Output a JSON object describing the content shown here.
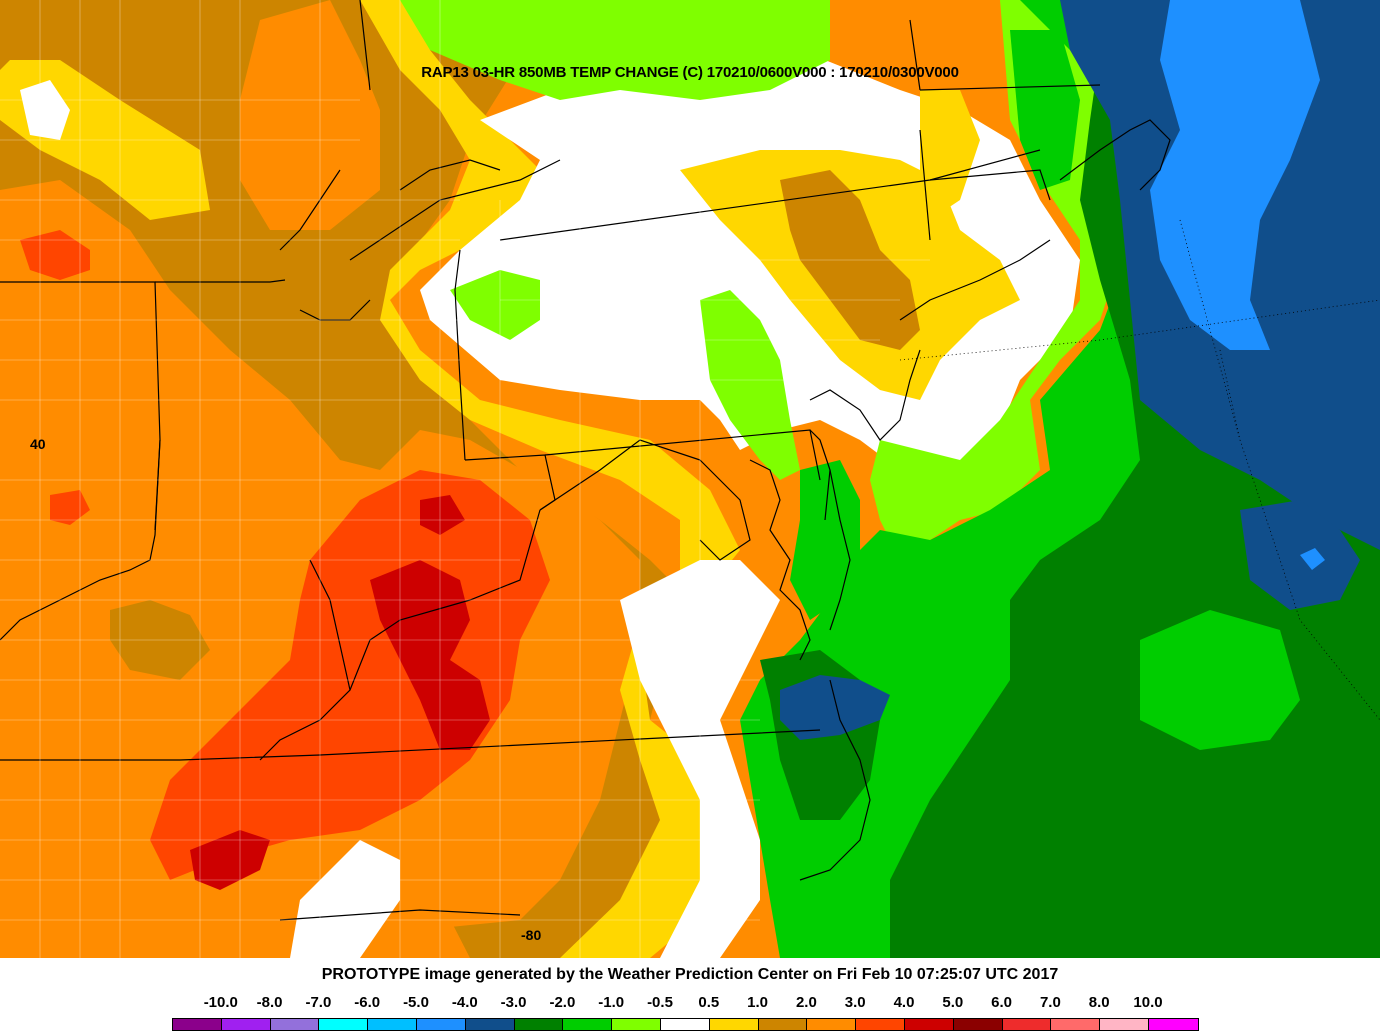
{
  "map": {
    "title": "RAP13 03-HR 850MB TEMP CHANGE (C) 170210/0600V000 : 170210/0300V000",
    "lat_label": "40",
    "lon_label": "-80"
  },
  "footer": {
    "credit": "PROTOTYPE image generated by the Weather Prediction Center on Fri Feb 10 07:25:07 UTC 2017"
  },
  "legend": {
    "labels": [
      "-10.0",
      "-8.0",
      "-7.0",
      "-6.0",
      "-5.0",
      "-4.0",
      "-3.0",
      "-2.0",
      "-1.0",
      "-0.5",
      "0.5",
      "1.0",
      "2.0",
      "3.0",
      "4.0",
      "5.0",
      "6.0",
      "7.0",
      "8.0",
      "10.0"
    ],
    "colors": [
      "#8b008b",
      "#a020f0",
      "#9370db",
      "#00ffff",
      "#00bfff",
      "#1e90ff",
      "#104e8b",
      "#008000",
      "#00cd00",
      "#7fff00",
      "#ffffff",
      "#ffd700",
      "#cd8500",
      "#ff8c00",
      "#ff4500",
      "#cd0000",
      "#8b0000",
      "#ee2c2c",
      "#ff6a6a",
      "#ffb5c5",
      "#ff00ff"
    ]
  }
}
